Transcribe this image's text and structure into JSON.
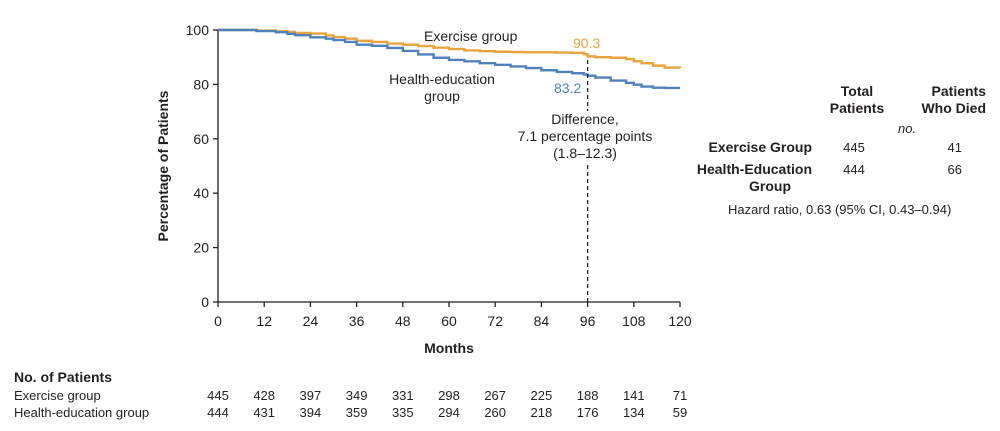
{
  "chart_data": {
    "type": "line",
    "title": "",
    "xlabel": "Months",
    "ylabel": "Percentage of Patients",
    "xlim": [
      0,
      120
    ],
    "ylim": [
      0,
      100
    ],
    "xticks": [
      0,
      12,
      24,
      36,
      48,
      60,
      72,
      84,
      96,
      108,
      120
    ],
    "yticks": [
      0,
      20,
      40,
      60,
      80,
      100
    ],
    "colors": {
      "exercise": "#e8a33d",
      "health": "#4f81bd",
      "axis": "#231f20"
    },
    "series": [
      {
        "name": "Exercise group",
        "key": "exercise",
        "x": [
          0,
          5,
          10,
          15,
          18,
          20,
          24,
          28,
          30,
          33,
          36,
          40,
          44,
          48,
          52,
          56,
          60,
          64,
          68,
          72,
          76,
          80,
          84,
          88,
          92,
          95,
          96,
          98,
          102,
          106,
          108,
          110,
          113,
          116,
          120
        ],
        "y": [
          100,
          100,
          99.8,
          99.5,
          99.3,
          98.9,
          98.7,
          98.0,
          97.4,
          96.8,
          96.0,
          95.6,
          95.0,
          94.6,
          94.1,
          93.5,
          93.0,
          92.5,
          92.2,
          92.0,
          91.9,
          91.8,
          91.8,
          91.7,
          91.6,
          91.1,
          90.3,
          90.0,
          89.8,
          89.3,
          88.5,
          87.8,
          86.9,
          86.2,
          86.0
        ]
      },
      {
        "name": "Health-education group",
        "key": "health",
        "x": [
          0,
          5,
          10,
          15,
          18,
          20,
          24,
          28,
          30,
          33,
          36,
          40,
          44,
          48,
          52,
          56,
          60,
          64,
          68,
          72,
          76,
          80,
          84,
          88,
          92,
          95,
          96,
          98,
          102,
          106,
          108,
          110,
          113,
          116,
          120
        ],
        "y": [
          100,
          100,
          99.6,
          99.2,
          98.6,
          98.1,
          97.3,
          96.8,
          96.3,
          95.6,
          94.6,
          94.2,
          93.4,
          92.3,
          91.0,
          89.8,
          89.0,
          88.5,
          87.8,
          87.2,
          86.6,
          86.0,
          85.2,
          84.6,
          84.1,
          83.6,
          83.2,
          82.5,
          81.4,
          80.6,
          79.9,
          79.2,
          78.8,
          78.7,
          78.7
        ]
      }
    ],
    "annotations": {
      "exercise_label": "Exercise group",
      "health_label_line1": "Health-education",
      "health_label_line2": "group",
      "exercise_value": "90.3",
      "health_value": "83.2",
      "difference_line1": "Difference,",
      "difference_line2": "7.1 percentage points",
      "difference_line3": "(1.8–12.3)",
      "difference_x": 96
    }
  },
  "summary_table": {
    "header_total_line1": "Total",
    "header_total_line2": "Patients",
    "header_died_line1": "Patients",
    "header_died_line2": "Who Died",
    "unit": "no.",
    "rows": [
      {
        "group_line1": "Exercise Group",
        "group_line2": "",
        "total": "445",
        "died": "41"
      },
      {
        "group_line1": "Health-Education",
        "group_line2": "Group",
        "total": "444",
        "died": "66"
      }
    ],
    "hazard_ratio": "Hazard ratio, 0.63 (95% CI, 0.43–0.94)"
  },
  "risk_table": {
    "title": "No. of Patients",
    "rows": [
      {
        "label": "Exercise group",
        "values": [
          "445",
          "428",
          "397",
          "349",
          "331",
          "298",
          "267",
          "225",
          "188",
          "141",
          "71"
        ]
      },
      {
        "label": "Health-education group",
        "values": [
          "444",
          "431",
          "394",
          "359",
          "335",
          "294",
          "260",
          "218",
          "176",
          "134",
          "59"
        ]
      }
    ]
  }
}
